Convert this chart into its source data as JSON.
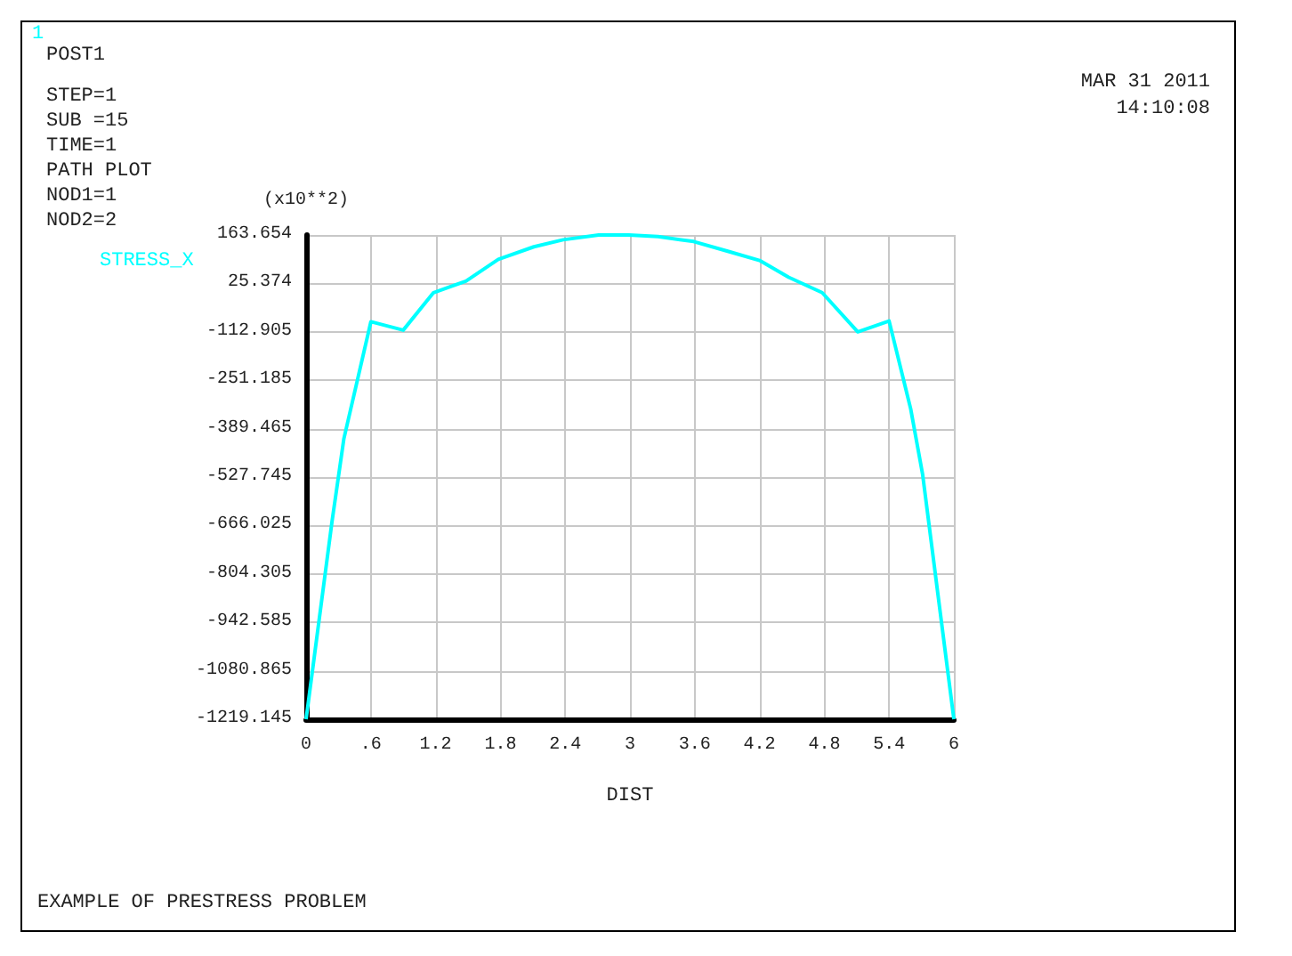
{
  "chart_data": {
    "type": "line",
    "title": "EXAMPLE OF PRESTRESS PROBLEM",
    "xlabel": "DIST",
    "ylabel": "(x10**2)",
    "annotations": [
      "1",
      "POST1",
      "STEP=1",
      "SUB =15",
      "TIME=1",
      "PATH PLOT",
      "NOD1=1",
      "NOD2=2",
      "MAR 31 2011",
      "14:10:08"
    ],
    "series": [
      {
        "name": "STRESS_X",
        "color": "#00ffff",
        "x": [
          0,
          0.24,
          0.35,
          0.6,
          0.9,
          1.18,
          1.48,
          1.78,
          2.11,
          2.38,
          2.71,
          2.99,
          3.26,
          3.59,
          3.92,
          4.2,
          4.47,
          4.78,
          5.11,
          5.4,
          5.6,
          5.71,
          6
        ],
        "values": [
          -1219.145,
          -655,
          -418,
          -84,
          -108,
          -1,
          32,
          94,
          130,
          150,
          163.654,
          163.654,
          159,
          145,
          116,
          91,
          43,
          -1,
          -113,
          -82,
          -333,
          -519,
          -1219.145
        ]
      }
    ],
    "xlim": [
      0,
      6
    ],
    "xticks": [
      0,
      {
        "value": 0.6,
        "label": ".6"
      },
      1.2,
      1.8,
      2.4,
      3,
      3.6,
      4.2,
      4.8,
      5.4,
      6
    ],
    "ylim": [
      -1219.145,
      163.654
    ],
    "yticks": [
      -1219.145,
      -1080.865,
      -942.585,
      -804.305,
      -666.025,
      -527.745,
      -389.465,
      -251.185,
      -112.905,
      25.374,
      163.654
    ],
    "grid": true,
    "legend": "left",
    "marker": "none",
    "line_style": "solid"
  }
}
